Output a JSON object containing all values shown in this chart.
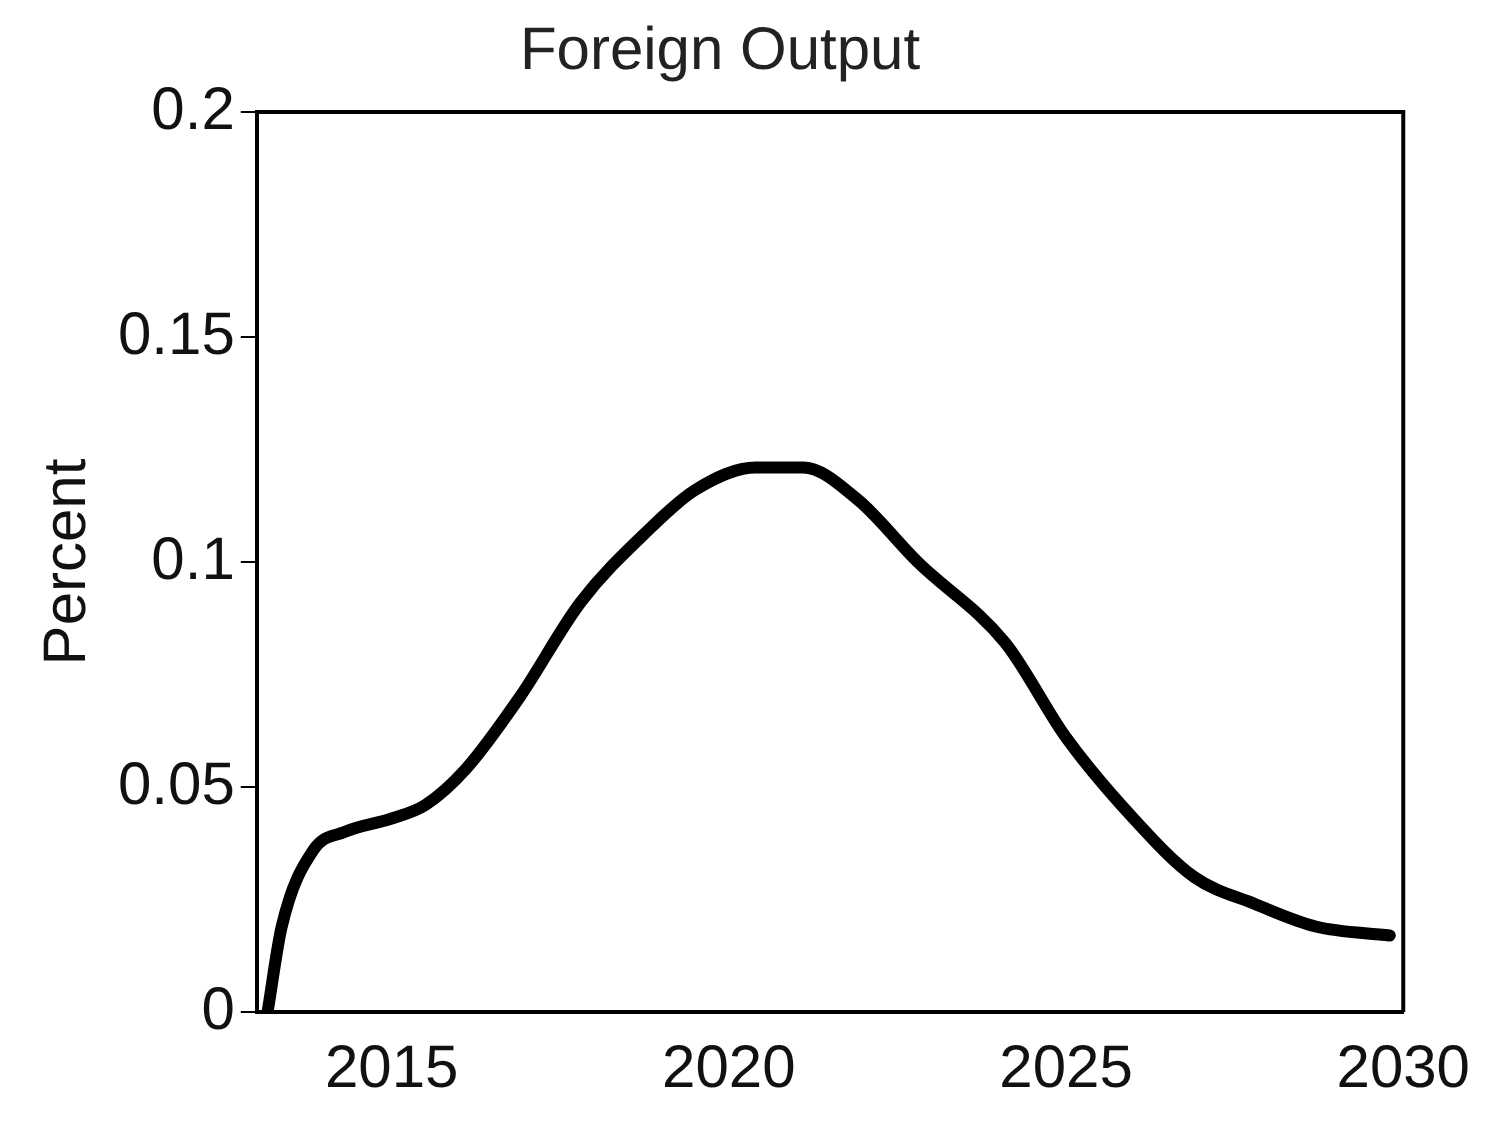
{
  "chart_data": {
    "type": "line",
    "title": "Foreign Output",
    "ylabel": "Percent",
    "x": [
      2013.16,
      2013.37,
      2013.84,
      2014.3,
      2015.0,
      2015.5,
      2016.1,
      2016.9,
      2017.8,
      2018.8,
      2019.5,
      2020.4,
      2021.1,
      2021.9,
      2022.8,
      2024.1,
      2025.0,
      2026.0,
      2026.9,
      2027.8,
      2028.7,
      2029.8
    ],
    "series": [
      {
        "color": "#000000",
        "values": [
          0,
          0.019,
          0.036,
          0.04,
          0.043,
          0.046,
          0.054,
          0.07,
          0.091,
          0.107,
          0.116,
          0.121,
          0.121,
          0.114,
          0.1,
          0.082,
          0.061,
          0.043,
          0.03,
          0.024,
          0.019,
          0.017
        ]
      }
    ],
    "xlim": [
      2013,
      2030
    ],
    "xticks": [
      2015,
      2020,
      2025,
      2030
    ],
    "ylim": [
      0,
      0.2
    ],
    "yticks": [
      0,
      0.05,
      0.1,
      0.15,
      0.2
    ],
    "grid": false,
    "legend": false,
    "marker": "none",
    "line_style": "solid"
  }
}
